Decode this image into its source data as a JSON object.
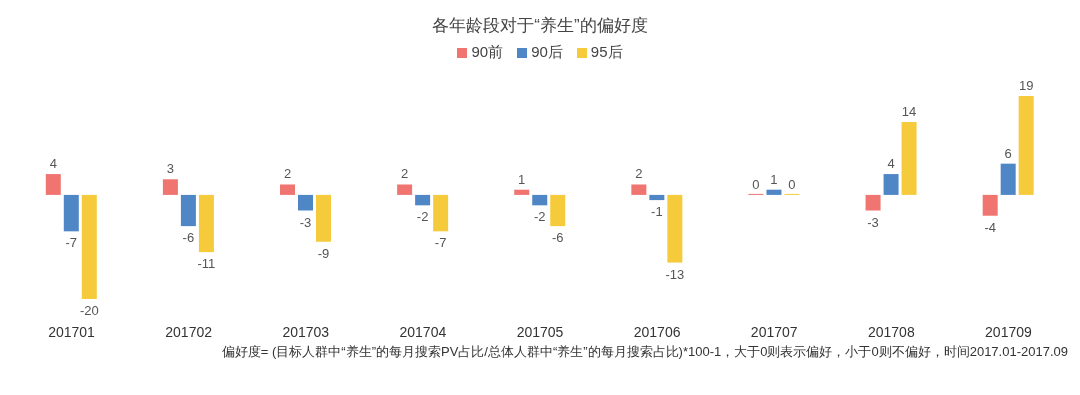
{
  "chart_data": {
    "type": "bar",
    "title": "各年龄段对于“养生”的偏好度",
    "categories": [
      "201701",
      "201702",
      "201703",
      "201704",
      "201705",
      "201706",
      "201707",
      "201708",
      "201709"
    ],
    "series": [
      {
        "name": "90前",
        "color": "#f07470",
        "values": [
          4,
          3,
          2,
          2,
          1,
          2,
          0,
          -3,
          -4
        ]
      },
      {
        "name": "90后",
        "color": "#4f86c6",
        "values": [
          -7,
          -6,
          -3,
          -2,
          -2,
          -1,
          1,
          4,
          6
        ]
      },
      {
        "name": "95后",
        "color": "#f5cb3c",
        "values": [
          -20,
          -11,
          -9,
          -7,
          -6,
          -13,
          0,
          14,
          19
        ]
      }
    ],
    "data_labels": true,
    "legend": "top",
    "grid": false,
    "annotations": [
      "偏好度= (目标人群中“养生”的每月搜索PV占比/总体人群中“养生”的每月搜索占比)*100-1，大于0则表示偏好，小于0则不偏好，时间2017.01-2017.09"
    ]
  }
}
